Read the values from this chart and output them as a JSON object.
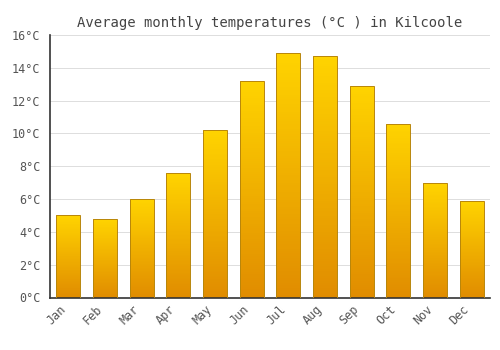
{
  "title": "Average monthly temperatures (°C ) in Kilcoole",
  "months": [
    "Jan",
    "Feb",
    "Mar",
    "Apr",
    "May",
    "Jun",
    "Jul",
    "Aug",
    "Sep",
    "Oct",
    "Nov",
    "Dec"
  ],
  "values": [
    5.0,
    4.8,
    6.0,
    7.6,
    10.2,
    13.2,
    14.9,
    14.7,
    12.9,
    10.6,
    7.0,
    5.9
  ],
  "bar_color_main": "#FFA500",
  "bar_color_light": "#FFD040",
  "bar_color_dark": "#E07000",
  "bar_edge_color": "#B8860B",
  "background_color": "#FFFFFF",
  "grid_color": "#DDDDDD",
  "title_color": "#444444",
  "tick_color": "#555555",
  "spine_color": "#333333",
  "ylim": [
    0,
    16
  ],
  "ytick_step": 2,
  "title_fontsize": 10,
  "tick_fontsize": 8.5
}
